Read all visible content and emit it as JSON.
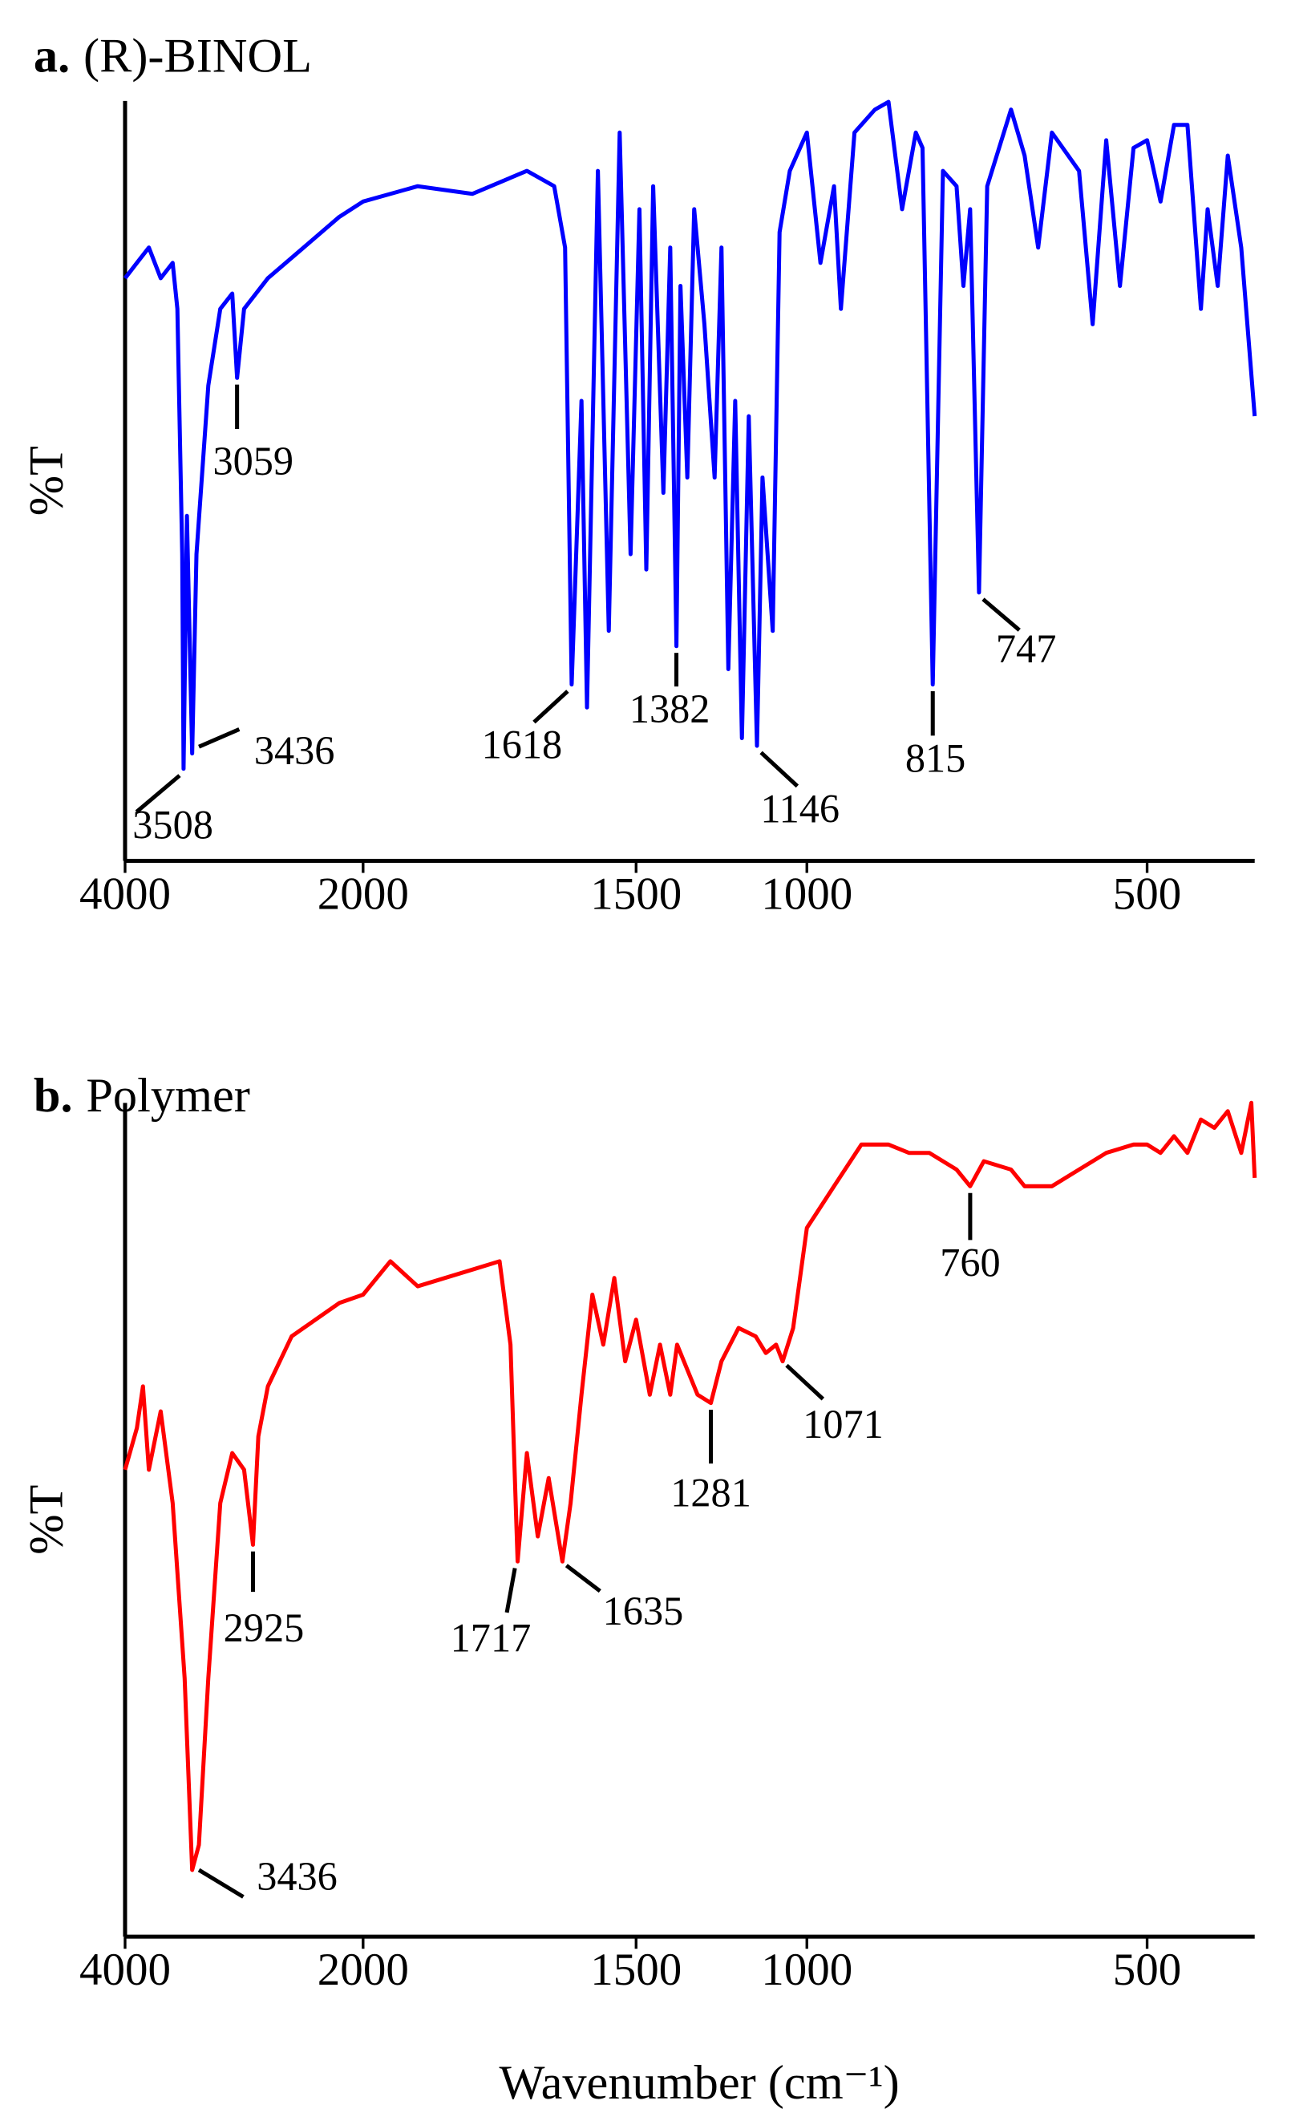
{
  "chart_data": [
    {
      "type": "line",
      "panel_label": "a.",
      "title": "(R)-BINOL",
      "ylabel": "%T",
      "color": "#0000ff",
      "x": [
        4000,
        3900,
        3800,
        3700,
        3600,
        3560,
        3520,
        3508,
        3480,
        3436,
        3400,
        3300,
        3200,
        3100,
        3059,
        3000,
        2800,
        2500,
        2200,
        2000,
        1900,
        1800,
        1700,
        1650,
        1630,
        1618,
        1600,
        1590,
        1570,
        1550,
        1530,
        1510,
        1490,
        1470,
        1450,
        1420,
        1400,
        1382,
        1370,
        1350,
        1330,
        1300,
        1270,
        1250,
        1230,
        1210,
        1190,
        1170,
        1146,
        1130,
        1100,
        1080,
        1050,
        1000,
        980,
        960,
        950,
        930,
        900,
        880,
        860,
        840,
        830,
        815,
        800,
        780,
        770,
        760,
        747,
        735,
        700,
        680,
        660,
        640,
        600,
        580,
        560,
        540,
        520,
        500,
        480,
        460,
        440,
        420,
        410,
        395,
        380,
        360,
        340
      ],
      "values": [
        76,
        78,
        80,
        76,
        78,
        72,
        40,
        12,
        45,
        14,
        40,
        62,
        72,
        74,
        63,
        72,
        76,
        80,
        84,
        86,
        88,
        87,
        90,
        88,
        80,
        23,
        60,
        20,
        90,
        30,
        95,
        40,
        85,
        38,
        88,
        48,
        80,
        28,
        75,
        50,
        85,
        70,
        50,
        80,
        25,
        60,
        16,
        58,
        15,
        50,
        30,
        82,
        90,
        95,
        78,
        88,
        72,
        95,
        98,
        99,
        85,
        95,
        93,
        23,
        90,
        88,
        75,
        85,
        35,
        88,
        98,
        92,
        80,
        95,
        90,
        70,
        94,
        75,
        93,
        94,
        86,
        96,
        96,
        72,
        85,
        75,
        92,
        80,
        58
      ],
      "xlim": [
        4000,
        340
      ],
      "xticks": [
        4000,
        2000,
        1500,
        1000,
        500
      ],
      "ylim": [
        0,
        100
      ],
      "peaks": [
        3508,
        3436,
        3059,
        1618,
        1382,
        1146,
        815,
        747
      ]
    },
    {
      "type": "line",
      "panel_label": "b.",
      "title": "Polymer",
      "ylabel": "%T",
      "xlabel": "Wavenumber (cm⁻¹)",
      "color": "#ff0000",
      "x": [
        4000,
        3900,
        3850,
        3800,
        3700,
        3600,
        3500,
        3436,
        3380,
        3300,
        3200,
        3100,
        3000,
        2925,
        2880,
        2800,
        2600,
        2400,
        2200,
        2000,
        1950,
        1900,
        1800,
        1750,
        1730,
        1717,
        1700,
        1680,
        1660,
        1635,
        1620,
        1600,
        1580,
        1560,
        1540,
        1520,
        1500,
        1460,
        1430,
        1400,
        1380,
        1350,
        1320,
        1281,
        1250,
        1200,
        1150,
        1120,
        1090,
        1071,
        1040,
        1000,
        960,
        920,
        880,
        850,
        820,
        780,
        760,
        740,
        700,
        680,
        640,
        600,
        560,
        520,
        500,
        480,
        460,
        440,
        420,
        400,
        380,
        360,
        345,
        340
      ],
      "values": [
        56,
        61,
        66,
        56,
        63,
        52,
        31,
        8,
        11,
        31,
        52,
        58,
        56,
        47,
        60,
        66,
        72,
        74,
        76,
        77,
        81,
        78,
        80,
        81,
        71,
        45,
        58,
        48,
        55,
        45,
        52,
        65,
        77,
        71,
        79,
        69,
        74,
        65,
        71,
        65,
        71,
        68,
        65,
        64,
        69,
        73,
        72,
        70,
        71,
        69,
        73,
        85,
        90,
        95,
        95,
        94,
        94,
        92,
        90,
        93,
        92,
        90,
        90,
        92,
        94,
        95,
        95,
        94,
        96,
        94,
        98,
        97,
        99,
        94,
        100,
        91
      ],
      "xlim": [
        4000,
        340
      ],
      "xticks": [
        4000,
        2000,
        1500,
        1000,
        500
      ],
      "ylim": [
        0,
        100
      ],
      "peaks": [
        3436,
        2925,
        1717,
        1635,
        1281,
        1071,
        760
      ]
    }
  ]
}
